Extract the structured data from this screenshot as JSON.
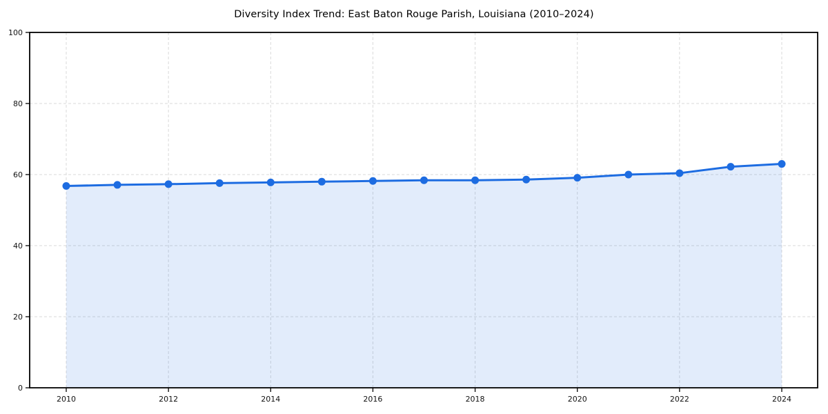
{
  "title": "Diversity Index Trend: East Baton Rouge Parish, Louisiana (2010–2024)",
  "chart_data": {
    "type": "area",
    "title": "Diversity Index Trend: East Baton Rouge Parish, Louisiana (2010–2024)",
    "x": [
      2010,
      2011,
      2012,
      2013,
      2014,
      2015,
      2016,
      2017,
      2018,
      2019,
      2020,
      2021,
      2022,
      2023,
      2024
    ],
    "series": [
      {
        "name": "Diversity Index",
        "values": [
          56.8,
          57.1,
          57.3,
          57.6,
          57.8,
          58.0,
          58.2,
          58.4,
          58.4,
          58.6,
          59.1,
          60.0,
          60.4,
          62.2,
          63.0
        ]
      }
    ],
    "xlabel": "",
    "ylabel": "",
    "ylim": [
      0,
      100
    ],
    "yticks": [
      0,
      20,
      40,
      60,
      80,
      100
    ],
    "xticks": [
      2010,
      2012,
      2014,
      2016,
      2018,
      2020,
      2022,
      2024
    ],
    "grid": true,
    "grid_style": "dashed",
    "legend": "none",
    "colors": {
      "line": "#1d6ce1",
      "marker": "#1d6ce1",
      "fill": "#1d6ce1",
      "fill_opacity": 0.13,
      "grid": "#d9d9d9",
      "frame": "#000000",
      "text": "#111111",
      "background": "#ffffff"
    }
  }
}
